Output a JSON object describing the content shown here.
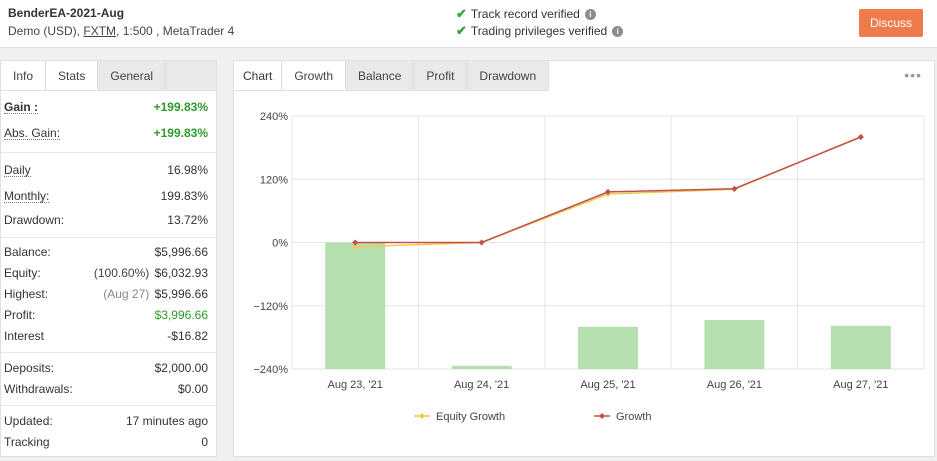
{
  "header": {
    "title": "BenderEA-2021-Aug",
    "sub_prefix": "Demo (USD),",
    "broker": "FXTM",
    "sub_suffix": ", 1:500 , MetaTrader 4",
    "verifications": [
      "Track record verified",
      "Trading privileges verified"
    ],
    "discuss_label": "Discuss"
  },
  "left_tabs": [
    "Info",
    "Stats",
    "General"
  ],
  "stats": {
    "gain": {
      "label": "Gain :",
      "value": "+199.83%"
    },
    "abs_gain": {
      "label": "Abs. Gain:",
      "value": "+199.83%"
    },
    "daily": {
      "label": "Daily",
      "value": "16.98%"
    },
    "monthly": {
      "label": "Monthly:",
      "value": "199.83%"
    },
    "drawdown": {
      "label": "Drawdown:",
      "value": "13.72%"
    },
    "balance": {
      "label": "Balance:",
      "value": "$5,996.66"
    },
    "equity": {
      "label": "Equity:",
      "pre": "(100.60%)",
      "value": "$6,032.93"
    },
    "highest": {
      "label": "Highest:",
      "pre": "(Aug 27)",
      "value": "$5,996.66"
    },
    "profit": {
      "label": "Profit:",
      "value": "$3,996.66"
    },
    "interest": {
      "label": "Interest",
      "value": "-$16.82"
    },
    "deposits": {
      "label": "Deposits:",
      "value": "$2,000.00"
    },
    "withdrawals": {
      "label": "Withdrawals:",
      "value": "$0.00"
    },
    "updated": {
      "label": "Updated:",
      "value": "17 minutes ago"
    },
    "tracking": {
      "label": "Tracking",
      "value": "0"
    }
  },
  "right_tabs": [
    "Chart",
    "Growth",
    "Balance",
    "Profit",
    "Drawdown"
  ],
  "menu_dots": "•••",
  "chart_data": {
    "type": "line",
    "categories": [
      "Aug 23, '21",
      "Aug 24, '21",
      "Aug 25, '21",
      "Aug 26, '21",
      "Aug 27, '21"
    ],
    "y_ticks": [
      "240%",
      "120%",
      "0%",
      "−120%",
      "−240%"
    ],
    "ylim": [
      -240,
      240
    ],
    "series": [
      {
        "name": "Equity Growth",
        "type": "line",
        "color": "#f2c94c",
        "values": [
          -8,
          0,
          92,
          101,
          201
        ]
      },
      {
        "name": "Growth",
        "type": "line",
        "color": "#c0504d",
        "values": [
          0,
          0,
          96,
          102,
          200
        ]
      }
    ],
    "bars": {
      "color": "#b6dfb0",
      "values": [
        0,
        -234,
        -160,
        -147,
        -158
      ]
    },
    "legend": "bottom-center",
    "grid": true
  }
}
